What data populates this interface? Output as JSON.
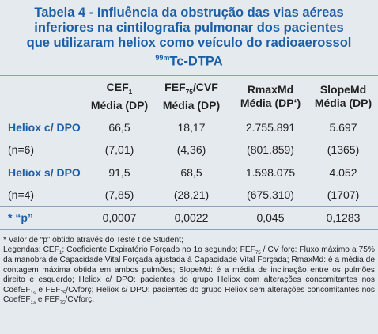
{
  "title": {
    "lines": [
      "Tabela 4 - Influência da obstrução das vias aéreas",
      "inferiores na cintilografia pulmonar dos pacientes",
      "que utilizaram heliox como veículo do radioaerossol"
    ],
    "sup": "99m",
    "last": "Tc-DTPA"
  },
  "table": {
    "columns": [
      {
        "name": [
          {
            "t": "CEF"
          },
          {
            "t": "1",
            "sub": true
          }
        ],
        "sub": "Média (DP)"
      },
      {
        "name": [
          {
            "t": "FEF"
          },
          {
            "t": "75",
            "sub": true
          },
          {
            "t": "/CVF"
          }
        ],
        "sub": "Média (DP)"
      },
      {
        "name": [
          {
            "t": "RmaxMd"
          }
        ],
        "sub": "Média (DP‘)"
      },
      {
        "name": [
          {
            "t": "SlopeMd"
          }
        ],
        "sub": "Média (DP)"
      }
    ],
    "rows": [
      [
        "Heliox c/ DPO",
        "66,5",
        "18,17",
        "2.755.891",
        "5.697"
      ],
      [
        "(n=6)",
        "(7,01)",
        "(4,36)",
        "(801.859)",
        "(1365)"
      ],
      [
        "Heliox s/ DPO",
        "91,5",
        "68,5",
        "1.598.075",
        "4.052"
      ],
      [
        "(n=4)",
        "(7,85)",
        "(28,21)",
        "(675.310)",
        "(1707)"
      ],
      [
        "* “p”",
        "0,0007",
        "0,0022",
        "0,045",
        "0,1283"
      ]
    ]
  },
  "notes": {
    "pvalue": "* Valor de “p” obtido através do Teste t de Student;",
    "legend": [
      {
        "t": "Legendas: CEF"
      },
      {
        "t": "1",
        "sub": true
      },
      {
        "t": "; Coeficiente Expiratório Forçado no 1o segundo; FEF"
      },
      {
        "t": "75",
        "sub": true
      },
      {
        "t": " / CV forç: Fluxo máximo a 75% da manobra de Capacidade Vital Forçada ajustada à Capacidade Vital Forçada; RmaxMd: é a média de contagem máxima obtida em ambos pulmões; SlopeMd: é a média de inclinação entre os pulmões direito e esquerdo; Heliox c/ DPO: pacientes do grupo Heliox com alterações concomitantes nos CoefEF"
      },
      {
        "t": "1s",
        "sub": true
      },
      {
        "t": " e FEF"
      },
      {
        "t": "75",
        "sub": true
      },
      {
        "t": "/Cvforç; Heliox s/ DPO: pacientes do grupo Heliox sem alterações concomitantes nos CoefEF"
      },
      {
        "t": "1s",
        "sub": true
      },
      {
        "t": " e FEF"
      },
      {
        "t": "75",
        "sub": true
      },
      {
        "t": "/CVforç."
      }
    ]
  }
}
